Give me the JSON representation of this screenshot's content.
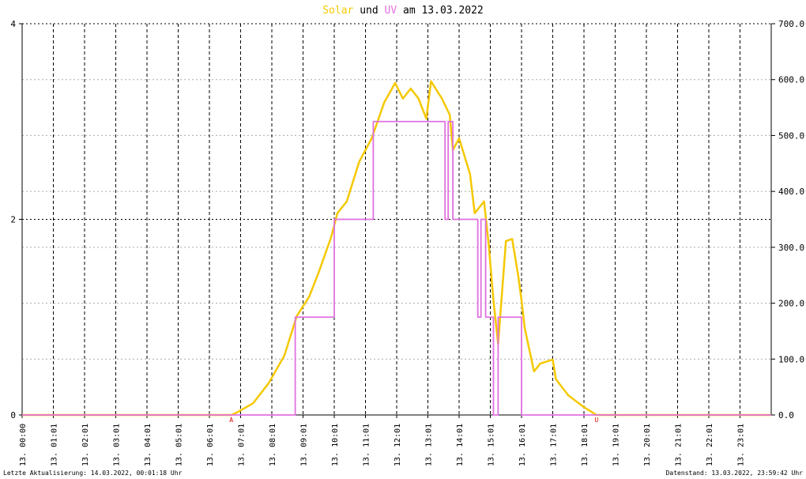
{
  "chart_data": {
    "type": "line",
    "title_parts": [
      "und",
      "am 13.03.2022"
    ],
    "xlim": [
      0,
      24
    ],
    "xticks": [
      {
        "value": 0,
        "label": "13. 00:00"
      },
      {
        "value": 1,
        "label": "13. 01:01"
      },
      {
        "value": 2,
        "label": "13. 02:01"
      },
      {
        "value": 3,
        "label": "13. 03:01"
      },
      {
        "value": 4,
        "label": "13. 04:01"
      },
      {
        "value": 5,
        "label": "13. 05:01"
      },
      {
        "value": 6,
        "label": "13. 06:01"
      },
      {
        "value": 7,
        "label": "13. 07:01"
      },
      {
        "value": 8,
        "label": "13. 08:01"
      },
      {
        "value": 9,
        "label": "13. 09:01"
      },
      {
        "value": 10,
        "label": "13. 10:01"
      },
      {
        "value": 11,
        "label": "13. 11:01"
      },
      {
        "value": 12,
        "label": "13. 12:01"
      },
      {
        "value": 13,
        "label": "13. 13:01"
      },
      {
        "value": 14,
        "label": "13. 14:01"
      },
      {
        "value": 15,
        "label": "13. 15:01"
      },
      {
        "value": 16,
        "label": "13. 16:01"
      },
      {
        "value": 17,
        "label": "13. 17:01"
      },
      {
        "value": 18,
        "label": "13. 18:01"
      },
      {
        "value": 19,
        "label": "13. 19:01"
      },
      {
        "value": 20,
        "label": "13. 20:01"
      },
      {
        "value": 21,
        "label": "13. 21:01"
      },
      {
        "value": 22,
        "label": "13. 22:01"
      },
      {
        "value": 23,
        "label": "13. 23:01"
      }
    ],
    "ylim": [
      0,
      4
    ],
    "yticks": [
      0,
      2,
      4
    ],
    "y2lim": [
      0,
      700
    ],
    "y2ticks": [
      {
        "value": 0,
        "label": "0.0"
      },
      {
        "value": 100,
        "label": "100.0"
      },
      {
        "value": 200,
        "label": "200.0"
      },
      {
        "value": 300,
        "label": "300.0"
      },
      {
        "value": 400,
        "label": "400.0"
      },
      {
        "value": 500,
        "label": "500.0"
      },
      {
        "value": 600,
        "label": "600.0"
      },
      {
        "value": 700,
        "label": "700.0"
      }
    ],
    "grid": true,
    "series": [
      {
        "name": "Solar",
        "color": "#f5c800",
        "axis": "y2",
        "x": [
          0,
          6.7,
          6.9,
          7.4,
          7.9,
          8.4,
          8.8,
          9.2,
          9.5,
          9.9,
          10.1,
          10.4,
          10.8,
          11.2,
          11.6,
          11.95,
          12.2,
          12.45,
          12.7,
          12.95,
          13.1,
          13.45,
          13.7,
          13.8,
          14.0,
          14.35,
          14.5,
          14.8,
          14.95,
          15.1,
          15.25,
          15.5,
          15.7,
          15.9,
          16.0,
          16.1,
          16.4,
          16.6,
          17.0,
          17.1,
          17.5,
          18.0,
          18.4,
          24
        ],
        "values": [
          0,
          0,
          5,
          21,
          57,
          106,
          177,
          212,
          255,
          318,
          361,
          382,
          453,
          495,
          559,
          594,
          566,
          584,
          566,
          530,
          597,
          566,
          537,
          474,
          495,
          431,
          361,
          382,
          304,
          205,
          127,
          311,
          315,
          247,
          205,
          156,
          78,
          92,
          99,
          64,
          35,
          14,
          0,
          0
        ]
      },
      {
        "name": "UV",
        "color": "#e070e0",
        "x": [
          0,
          8.75,
          8.75,
          10,
          10,
          11.25,
          11.25,
          13.55,
          13.55,
          13.65,
          13.65,
          13.8,
          13.8,
          14.6,
          14.6,
          14.7,
          14.7,
          14.85,
          14.85,
          15.1,
          15.1,
          15.25,
          15.25,
          16.0,
          16.0,
          24
        ],
        "values": [
          0,
          0,
          1,
          1,
          2,
          2,
          3,
          3,
          2,
          2,
          3,
          3,
          2,
          2,
          1,
          1,
          2,
          2,
          1,
          1,
          0,
          0,
          1,
          1,
          0,
          0
        ]
      }
    ],
    "annotations": [
      {
        "text": "A",
        "x": 6.7
      },
      {
        "text": "U",
        "x": 18.4
      }
    ]
  },
  "footer": {
    "left": "Letzte Aktualisierung: 14.03.2022, 00:01:18 Uhr",
    "right": "Datenstand: 13.03.2022, 23:59:42 Uhr"
  }
}
